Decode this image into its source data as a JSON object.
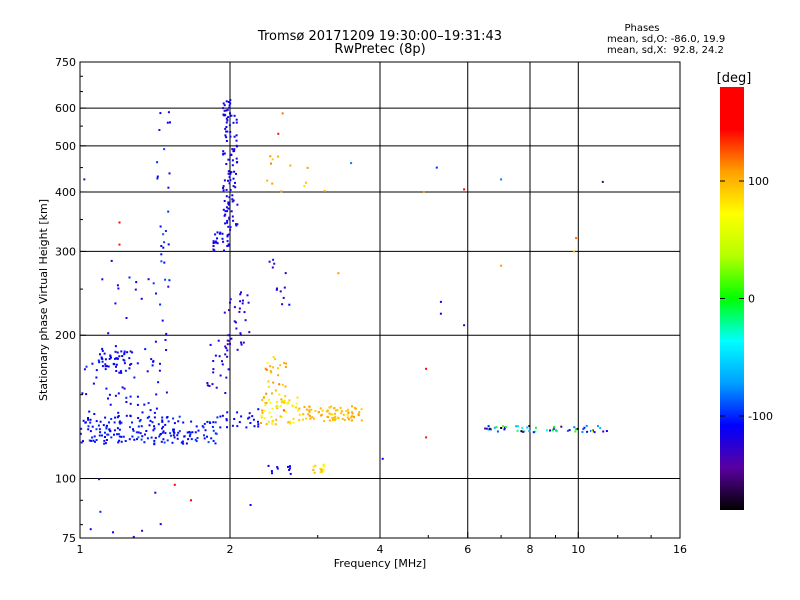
{
  "chart_data": {
    "type": "scatter",
    "title": "Tromsø 20171209 19:30:00–19:31:43",
    "subtitle": "RwPretec (8p)",
    "xlabel": "Frequency [MHz]",
    "ylabel": "Stationary phase Virtual Height [km]",
    "x_scale": "log",
    "y_scale": "log",
    "xlim": [
      1,
      16
    ],
    "ylim": [
      75,
      750
    ],
    "x_ticks": [
      1,
      2,
      4,
      6,
      8,
      10,
      16
    ],
    "x_tick_labels": [
      "1",
      "2",
      "4",
      "6",
      "8",
      "10",
      "16"
    ],
    "x_gridlines": [
      2,
      4,
      6,
      8,
      10
    ],
    "y_ticks": [
      75,
      100,
      200,
      300,
      400,
      500,
      600,
      750
    ],
    "y_tick_labels": [
      "75",
      "100",
      "200",
      "300",
      "400",
      "500",
      "600",
      "750"
    ],
    "y_gridlines": [
      100,
      200,
      300,
      400,
      500,
      600
    ],
    "grid": true,
    "stats_block": {
      "heading": "Phases",
      "line1": "mean, sd,O: -86.0, 19.9",
      "line2": "mean, sd,X:  92.8, 24.2"
    },
    "colorbar": {
      "label": "[deg]",
      "range": [
        -180,
        180
      ],
      "ticks": [
        100,
        0,
        -100
      ],
      "tick_labels": [
        "100",
        "0",
        "-100"
      ],
      "colors": [
        "#000000",
        "#5a00a0",
        "#0000ff",
        "#00a0ff",
        "#00ffff",
        "#00ff00",
        "#b4ff00",
        "#ffff00",
        "#ffa000",
        "#ff0000",
        "#ff0000"
      ]
    },
    "clusters": [
      {
        "x": [
          1.0,
          1.9
        ],
        "y": [
          118,
          135
        ],
        "n": 170,
        "phase": -105,
        "phase_sd": 10
      },
      {
        "x": [
          1.0,
          1.45
        ],
        "y": [
          120,
          190
        ],
        "n": 70,
        "phase": -110,
        "phase_sd": 10
      },
      {
        "x": [
          1.08,
          1.28
        ],
        "y": [
          168,
          185
        ],
        "n": 40,
        "phase": -110,
        "phase_sd": 10
      },
      {
        "x": [
          1.1,
          1.5
        ],
        "y": [
          140,
          290
        ],
        "n": 30,
        "phase": -115,
        "phase_sd": 12
      },
      {
        "x": [
          1.42,
          1.52
        ],
        "y": [
          240,
          610
        ],
        "n": 25,
        "phase": -108,
        "phase_sd": 15
      },
      {
        "x": [
          1.85,
          2.0
        ],
        "y": [
          300,
          330
        ],
        "n": 25,
        "phase": -115,
        "phase_sd": 8
      },
      {
        "x": [
          1.93,
          2.07
        ],
        "y": [
          330,
          625
        ],
        "n": 110,
        "phase": -115,
        "phase_sd": 8
      },
      {
        "x": [
          1.95,
          2.2
        ],
        "y": [
          180,
          250
        ],
        "n": 35,
        "phase": -125,
        "phase_sd": 10
      },
      {
        "x": [
          1.8,
          2.0
        ],
        "y": [
          150,
          195
        ],
        "n": 20,
        "phase": -120,
        "phase_sd": 8
      },
      {
        "x": [
          1.9,
          2.3
        ],
        "y": [
          128,
          140
        ],
        "n": 25,
        "phase": -108,
        "phase_sd": 6
      },
      {
        "x": [
          2.3,
          2.75
        ],
        "y": [
          130,
          150
        ],
        "n": 60,
        "phase": 80,
        "phase_sd": 25
      },
      {
        "x": [
          2.35,
          2.6
        ],
        "y": [
          150,
          180
        ],
        "n": 25,
        "phase": 100,
        "phase_sd": 20
      },
      {
        "x": [
          2.75,
          3.7
        ],
        "y": [
          132,
          142
        ],
        "n": 80,
        "phase": 100,
        "phase_sd": 10
      },
      {
        "x": [
          2.9,
          3.1
        ],
        "y": [
          102,
          107
        ],
        "n": 15,
        "phase": 80,
        "phase_sd": 15
      },
      {
        "x": [
          2.35,
          2.65
        ],
        "y": [
          102,
          107
        ],
        "n": 10,
        "phase": -110,
        "phase_sd": 8
      },
      {
        "x": [
          2.35,
          3.2
        ],
        "y": [
          400,
          480
        ],
        "n": 12,
        "phase": 105,
        "phase_sd": 10
      },
      {
        "x": [
          2.4,
          2.65
        ],
        "y": [
          230,
          290
        ],
        "n": 12,
        "phase": -120,
        "phase_sd": 15
      },
      {
        "x": [
          6.5,
          11.5
        ],
        "y": [
          125,
          129
        ],
        "n": 55,
        "phase": -90,
        "phase_sd": 90
      },
      {
        "x": [
          1.0,
          1.5
        ],
        "y": [
          75,
          100
        ],
        "n": 8,
        "phase": -110,
        "phase_sd": 15
      }
    ],
    "points": [
      {
        "x": 1.55,
        "y": 97,
        "phase": 160
      },
      {
        "x": 1.67,
        "y": 90,
        "phase": 160
      },
      {
        "x": 4.9,
        "y": 400,
        "phase": 110
      },
      {
        "x": 4.95,
        "y": 170,
        "phase": 170
      },
      {
        "x": 4.95,
        "y": 122,
        "phase": 140
      },
      {
        "x": 5.9,
        "y": 405,
        "phase": 160
      },
      {
        "x": 5.2,
        "y": 450,
        "phase": -100
      },
      {
        "x": 5.3,
        "y": 235,
        "phase": -120
      },
      {
        "x": 5.3,
        "y": 222,
        "phase": -120
      },
      {
        "x": 5.9,
        "y": 210,
        "phase": -130
      },
      {
        "x": 4.05,
        "y": 110,
        "phase": -110
      },
      {
        "x": 9.9,
        "y": 320,
        "phase": 120
      },
      {
        "x": 9.8,
        "y": 300,
        "phase": 100
      },
      {
        "x": 11.2,
        "y": 420,
        "phase": -150
      },
      {
        "x": 7.0,
        "y": 425,
        "phase": -80
      },
      {
        "x": 7.0,
        "y": 280,
        "phase": 110
      },
      {
        "x": 2.2,
        "y": 88,
        "phase": -110
      },
      {
        "x": 1.2,
        "y": 345,
        "phase": 150
      },
      {
        "x": 1.2,
        "y": 310,
        "phase": 140
      },
      {
        "x": 1.02,
        "y": 425,
        "phase": -140
      },
      {
        "x": 3.5,
        "y": 460,
        "phase": -80
      },
      {
        "x": 3.3,
        "y": 270,
        "phase": 110
      },
      {
        "x": 2.5,
        "y": 530,
        "phase": 140
      },
      {
        "x": 2.55,
        "y": 585,
        "phase": 120
      }
    ]
  }
}
